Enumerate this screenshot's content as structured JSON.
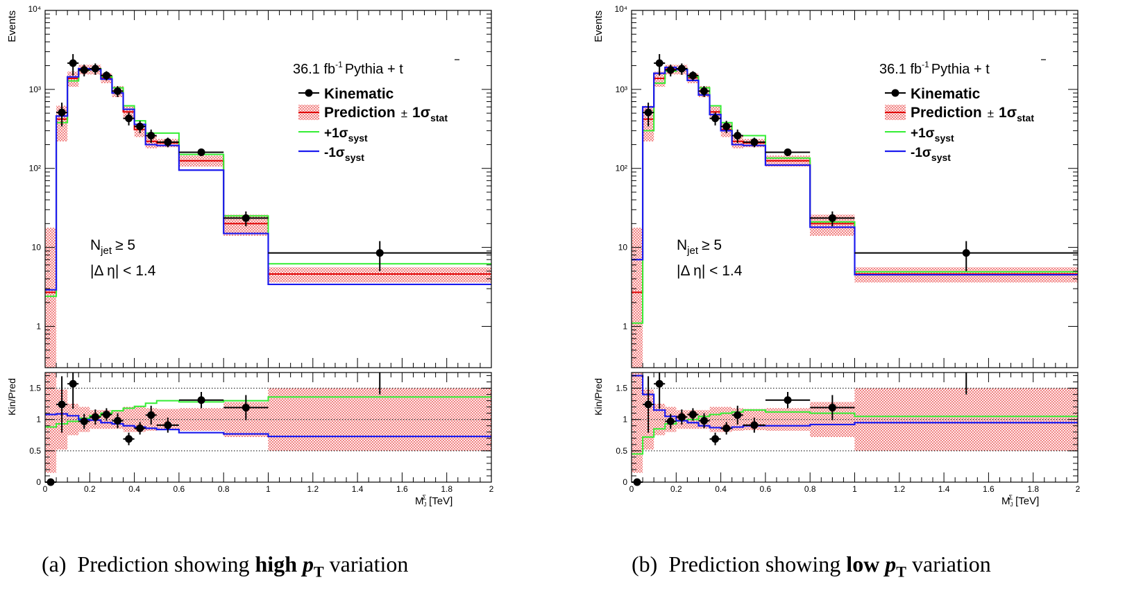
{
  "panels": [
    {
      "id": "a",
      "caption": {
        "prefix": "(a)",
        "text": "Prediction showing",
        "bold": "high",
        "pt": "p",
        "pt_sub": "T",
        "suffix": "variation"
      },
      "labels": {
        "lumi": "36.1 fb",
        "lumi_sup": "-1",
        "lumi_rest": "Pythia + t",
        "ttbar": "t",
        "legend_kin": "Kinematic",
        "legend_pred": "Prediction",
        "legend_pm": "±",
        "legend_sigma1": "1σ",
        "legend_stat": "stat",
        "legend_plus": "+1σ",
        "legend_minus": "-1σ",
        "legend_syst": "syst",
        "njet": "N",
        "njet_sub": "jet",
        "njet_rest": "≥ 5",
        "deta": "|Δ η| < 1.4",
        "ylabel_top": "Events",
        "ylabel_bottom": "Kin/Pred",
        "xlabel": "M",
        "xlabel_sub": "J",
        "xlabel_sup": "Σ",
        "xlabel_unit": "[TeV]"
      }
    },
    {
      "id": "b",
      "caption": {
        "prefix": "(b)",
        "text": "Prediction showing",
        "bold": "low",
        "pt": "p",
        "pt_sub": "T",
        "suffix": "variation"
      },
      "labels": {
        "lumi": "36.1 fb",
        "lumi_sup": "-1",
        "lumi_rest": "Pythia + t",
        "ttbar": "t",
        "legend_kin": "Kinematic",
        "legend_pred": "Prediction",
        "legend_pm": "±",
        "legend_sigma1": "1σ",
        "legend_stat": "stat",
        "legend_plus": "+1σ",
        "legend_minus": "-1σ",
        "legend_syst": "syst",
        "njet": "N",
        "njet_sub": "jet",
        "njet_rest": "≥ 5",
        "deta": "|Δ η| < 1.4",
        "ylabel_top": "Events",
        "ylabel_bottom": "Kin/Pred",
        "xlabel": "M",
        "xlabel_sub": "J",
        "xlabel_sup": "Σ",
        "xlabel_unit": "[TeV]"
      }
    }
  ],
  "colors": {
    "data": "#000000",
    "pred": "#e00000",
    "band": "#f5b3b3",
    "plus": "#33ee33",
    "minus": "#1a1aee"
  },
  "chart_data": [
    {
      "type": "line",
      "title": "",
      "xlabel": "M_J^Σ [TeV]",
      "xlim": [
        0,
        2
      ],
      "top": {
        "ylabel": "Events",
        "yscale": "log",
        "ylim": [
          0.3,
          10000
        ],
        "yticks": [
          "1",
          "10",
          "10²",
          "10³",
          "10⁴"
        ],
        "bin_edges": [
          0,
          0.05,
          0.1,
          0.15,
          0.2,
          0.25,
          0.3,
          0.35,
          0.4,
          0.45,
          0.5,
          0.6,
          0.8,
          1.0,
          2.0
        ],
        "series": [
          {
            "name": "Kinematic",
            "x": [
              0.075,
              0.125,
              0.175,
              0.225,
              0.275,
              0.325,
              0.375,
              0.425,
              0.475,
              0.55,
              0.7,
              0.9,
              1.5
            ],
            "values": [
              510,
              2150,
              1760,
              1830,
              1500,
              950,
              430,
              340,
              260,
              215,
              160,
              23.5,
              8.5
            ],
            "yerr": [
              170,
              650,
              300,
              300,
              200,
              150,
              80,
              60,
              50,
              30,
              15,
              5,
              3.5
            ]
          },
          {
            "name": "Prediction ± 1σstat",
            "values": [
              2.7,
              420,
              1380,
              1800,
              1800,
              1400,
              950,
              520,
              310,
              220,
              210,
              125,
              20,
              4.6
            ],
            "err": [
              15,
              200,
              300,
              250,
              250,
              200,
              150,
              100,
              60,
              40,
              25,
              20,
              6,
              1.0
            ]
          },
          {
            "name": "+1σsyst",
            "values": [
              2.4,
              380,
              1280,
              1750,
              1830,
              1450,
              1050,
              620,
              400,
              280,
              280,
              150,
              25,
              6.2
            ]
          },
          {
            "name": "-1σsyst",
            "values": [
              2.9,
              460,
              1440,
              1830,
              1780,
              1350,
              900,
              560,
              360,
              200,
              195,
              95,
              15,
              3.4
            ]
          }
        ]
      },
      "ratio": {
        "ylabel": "Kin/Pred",
        "ylim": [
          0,
          1.75
        ],
        "yticks": [
          "0",
          "0.5",
          "1",
          "1.5"
        ],
        "points": {
          "x": [
            0.025,
            0.075,
            0.125,
            0.175,
            0.225,
            0.275,
            0.325,
            0.375,
            0.425,
            0.475,
            0.55,
            0.7,
            0.9,
            1.5
          ],
          "values": [
            0,
            1.24,
            1.57,
            0.97,
            1.04,
            1.08,
            0.98,
            0.69,
            0.86,
            1.07,
            0.91,
            1.31,
            1.19,
            2.0
          ],
          "yerr": [
            0,
            0.45,
            0.4,
            0.12,
            0.12,
            0.1,
            0.12,
            0.1,
            0.1,
            0.15,
            0.12,
            0.13,
            0.2,
            0.6
          ]
        },
        "band_err": [
          0.85,
          0.48,
          0.25,
          0.2,
          0.15,
          0.15,
          0.15,
          0.2,
          0.2,
          0.18,
          0.17,
          0.18,
          0.28,
          0.5
        ],
        "plus": [
          0.88,
          0.93,
          0.97,
          1.02,
          1.06,
          1.1,
          1.14,
          1.18,
          1.21,
          1.26,
          1.3,
          1.28,
          1.3,
          1.36
        ],
        "minus": [
          1.08,
          1.09,
          1.06,
          1.0,
          0.99,
          0.95,
          0.93,
          0.9,
          0.88,
          0.86,
          0.84,
          0.79,
          0.77,
          0.73
        ]
      }
    },
    {
      "type": "line",
      "title": "",
      "xlabel": "M_J^Σ [TeV]",
      "xlim": [
        0,
        2
      ],
      "top": {
        "ylabel": "Events",
        "yscale": "log",
        "ylim": [
          0.3,
          10000
        ],
        "yticks": [
          "1",
          "10",
          "10²",
          "10³",
          "10⁴"
        ],
        "bin_edges": [
          0,
          0.05,
          0.1,
          0.15,
          0.2,
          0.25,
          0.3,
          0.35,
          0.4,
          0.45,
          0.5,
          0.6,
          0.8,
          1.0,
          2.0
        ],
        "series": [
          {
            "name": "Kinematic",
            "x": [
              0.075,
              0.125,
              0.175,
              0.225,
              0.275,
              0.325,
              0.375,
              0.425,
              0.475,
              0.55,
              0.7,
              0.9,
              1.5
            ],
            "values": [
              510,
              2150,
              1760,
              1830,
              1500,
              950,
              430,
              340,
              260,
              215,
              160,
              23.5,
              8.5
            ],
            "yerr": [
              170,
              650,
              300,
              300,
              200,
              150,
              80,
              60,
              50,
              30,
              15,
              5,
              3.5
            ]
          },
          {
            "name": "Prediction ± 1σstat",
            "values": [
              2.7,
              420,
              1380,
              1800,
              1800,
              1400,
              950,
              520,
              310,
              220,
              210,
              125,
              20,
              4.6
            ],
            "err": [
              15,
              200,
              300,
              250,
              250,
              200,
              150,
              100,
              60,
              40,
              25,
              20,
              6,
              1.0
            ]
          },
          {
            "name": "+1σsyst",
            "values": [
              1.1,
              300,
              1200,
              1700,
              1800,
              1450,
              1050,
              620,
              380,
              260,
              260,
              135,
              21,
              4.9
            ]
          },
          {
            "name": "-1σsyst",
            "values": [
              7.0,
              600,
              1600,
              1900,
              1780,
              1300,
              850,
              480,
              300,
              200,
              195,
              110,
              18,
              4.5
            ]
          }
        ]
      },
      "ratio": {
        "ylabel": "Kin/Pred",
        "ylim": [
          0,
          1.75
        ],
        "yticks": [
          "0",
          "0.5",
          "1",
          "1.5"
        ],
        "points": {
          "x": [
            0.025,
            0.075,
            0.125,
            0.175,
            0.225,
            0.275,
            0.325,
            0.375,
            0.425,
            0.475,
            0.55,
            0.7,
            0.9,
            1.5
          ],
          "values": [
            0,
            1.24,
            1.57,
            0.97,
            1.04,
            1.08,
            0.98,
            0.69,
            0.86,
            1.07,
            0.91,
            1.31,
            1.19,
            2.0
          ],
          "yerr": [
            0,
            0.45,
            0.4,
            0.12,
            0.12,
            0.1,
            0.12,
            0.1,
            0.1,
            0.15,
            0.12,
            0.13,
            0.2,
            0.6
          ]
        },
        "band_err": [
          0.85,
          0.48,
          0.25,
          0.2,
          0.15,
          0.15,
          0.15,
          0.2,
          0.2,
          0.18,
          0.17,
          0.18,
          0.28,
          0.5
        ],
        "plus": [
          0.45,
          0.72,
          0.85,
          0.93,
          0.98,
          1.0,
          1.05,
          1.08,
          1.1,
          1.12,
          1.15,
          1.12,
          1.1,
          1.05
        ],
        "minus": [
          1.7,
          1.4,
          1.15,
          1.05,
          0.98,
          0.95,
          0.9,
          0.87,
          0.86,
          0.88,
          0.9,
          0.9,
          0.92,
          0.95
        ]
      }
    }
  ]
}
